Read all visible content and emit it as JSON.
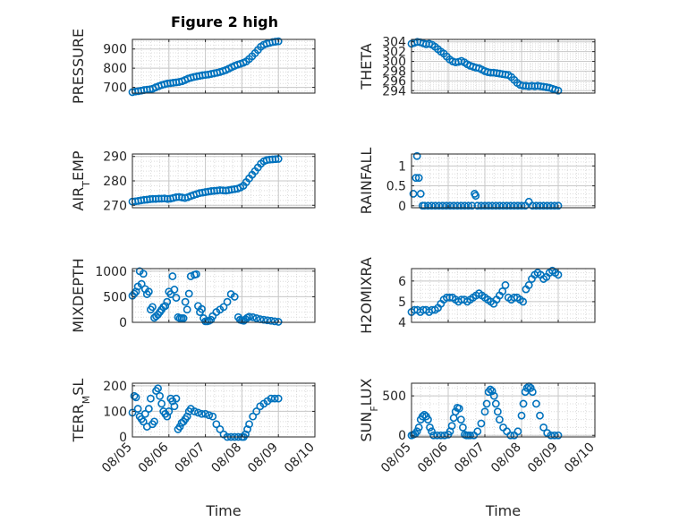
{
  "figure": {
    "title": "Figure 2 high",
    "marker_color": "#0072bd"
  },
  "chart_data": [
    {
      "type": "scatter",
      "ylabel": "PRESSURE",
      "xlabel": "",
      "title": "Figure 2 high",
      "xlim": [
        "08/05",
        "08/10"
      ],
      "ylim": [
        670,
        950
      ],
      "yticks": [
        700,
        800,
        900
      ],
      "xtick_labels": [],
      "grid": true,
      "series": [
        {
          "x": [
            0.0,
            0.08,
            0.16,
            0.24,
            0.32,
            0.4,
            0.48,
            0.56,
            0.64,
            0.72,
            0.8,
            0.88,
            0.96,
            1.04,
            1.12,
            1.2,
            1.28,
            1.36,
            1.44,
            1.52,
            1.6,
            1.68,
            1.76,
            1.84,
            1.92,
            2.0,
            2.08,
            2.16,
            2.24,
            2.32,
            2.4,
            2.48,
            2.56,
            2.64,
            2.72,
            2.8,
            2.88,
            2.96,
            3.04,
            3.12,
            3.2,
            3.28,
            3.36,
            3.44,
            3.52,
            3.6,
            3.68,
            3.76,
            3.84,
            3.92,
            4.0
          ],
          "values": [
            675,
            678,
            680,
            683,
            686,
            688,
            690,
            693,
            700,
            706,
            712,
            716,
            720,
            722,
            724,
            726,
            728,
            732,
            738,
            745,
            750,
            754,
            757,
            760,
            763,
            765,
            767,
            770,
            773,
            776,
            780,
            785,
            790,
            797,
            805,
            812,
            818,
            823,
            828,
            835,
            848,
            862,
            878,
            895,
            912,
            922,
            928,
            932,
            936,
            938,
            940
          ]
        }
      ]
    },
    {
      "type": "scatter",
      "ylabel": "THETA",
      "xlabel": "",
      "xlim": [
        "08/05",
        "08/10"
      ],
      "ylim": [
        293.5,
        304.5
      ],
      "yticks": [
        294,
        296,
        298,
        300,
        302,
        304
      ],
      "xtick_labels": [],
      "grid": true,
      "series": [
        {
          "x": [
            0.0,
            0.08,
            0.16,
            0.24,
            0.32,
            0.4,
            0.48,
            0.56,
            0.64,
            0.72,
            0.8,
            0.88,
            0.96,
            1.04,
            1.12,
            1.2,
            1.28,
            1.36,
            1.44,
            1.52,
            1.6,
            1.68,
            1.76,
            1.84,
            1.92,
            2.0,
            2.08,
            2.16,
            2.24,
            2.32,
            2.4,
            2.48,
            2.56,
            2.64,
            2.72,
            2.8,
            2.88,
            2.96,
            3.04,
            3.12,
            3.2,
            3.28,
            3.36,
            3.44,
            3.52,
            3.6,
            3.68,
            3.76,
            3.84,
            3.92,
            4.0
          ],
          "values": [
            303.6,
            303.8,
            304.0,
            303.9,
            303.7,
            303.5,
            303.6,
            303.4,
            303.0,
            302.5,
            302.0,
            301.6,
            301.0,
            300.4,
            300.0,
            299.8,
            299.9,
            300.1,
            299.8,
            299.4,
            299.1,
            298.9,
            298.7,
            298.6,
            298.3,
            298.0,
            297.8,
            297.7,
            297.7,
            297.6,
            297.5,
            297.4,
            297.3,
            297.2,
            296.8,
            296.2,
            295.6,
            295.2,
            295.0,
            295.0,
            294.9,
            295.0,
            294.9,
            295.0,
            294.9,
            294.8,
            294.7,
            294.6,
            294.4,
            294.2,
            294.0
          ]
        }
      ]
    },
    {
      "type": "scatter",
      "ylabel": "AIR_TEMP",
      "xlabel": "",
      "xlim": [
        "08/05",
        "08/10"
      ],
      "ylim": [
        269,
        291
      ],
      "yticks": [
        270,
        280,
        290
      ],
      "xtick_labels": [],
      "grid": true,
      "series": [
        {
          "x": [
            0.0,
            0.08,
            0.16,
            0.24,
            0.32,
            0.4,
            0.48,
            0.56,
            0.64,
            0.72,
            0.8,
            0.88,
            0.96,
            1.04,
            1.12,
            1.2,
            1.28,
            1.36,
            1.44,
            1.52,
            1.6,
            1.68,
            1.76,
            1.84,
            1.92,
            2.0,
            2.08,
            2.16,
            2.24,
            2.32,
            2.4,
            2.48,
            2.56,
            2.64,
            2.72,
            2.8,
            2.88,
            2.96,
            3.04,
            3.12,
            3.2,
            3.28,
            3.36,
            3.44,
            3.52,
            3.6,
            3.68,
            3.76,
            3.84,
            3.92,
            4.0
          ],
          "values": [
            271.5,
            271.6,
            271.8,
            272.0,
            272.2,
            272.3,
            272.5,
            272.6,
            272.6,
            272.7,
            272.7,
            272.8,
            272.6,
            272.7,
            273.0,
            273.3,
            273.4,
            273.2,
            273.0,
            273.3,
            273.8,
            274.2,
            274.6,
            275.0,
            275.2,
            275.4,
            275.6,
            275.8,
            275.9,
            276.0,
            276.2,
            276.1,
            276.0,
            276.2,
            276.4,
            276.6,
            276.8,
            277.3,
            278.0,
            279.5,
            281.0,
            282.5,
            284.0,
            285.5,
            287.0,
            288.0,
            288.5,
            288.7,
            288.8,
            288.9,
            289.0
          ]
        }
      ]
    },
    {
      "type": "scatter",
      "ylabel": "RAINFALL",
      "xlabel": "",
      "xlim": [
        "08/05",
        "08/10"
      ],
      "ylim": [
        -0.05,
        1.3
      ],
      "yticks": [
        0,
        0.5,
        1
      ],
      "ytick_labels": [
        "0",
        "0.5",
        "1"
      ],
      "xtick_labels": [],
      "grid": true,
      "series": [
        {
          "x": [
            0.05,
            0.12,
            0.15,
            0.2,
            0.25,
            0.3,
            0.35,
            0.45,
            0.55,
            0.65,
            0.75,
            0.85,
            0.95,
            1.05,
            1.15,
            1.25,
            1.35,
            1.45,
            1.55,
            1.65,
            1.72,
            1.75,
            1.8,
            1.9,
            2.0,
            2.1,
            2.2,
            2.3,
            2.4,
            2.5,
            2.6,
            2.7,
            2.8,
            2.9,
            3.0,
            3.1,
            3.2,
            3.3,
            3.4,
            3.5,
            3.6,
            3.7,
            3.8,
            3.9,
            4.0
          ],
          "values": [
            0.3,
            0.7,
            1.25,
            0.7,
            0.3,
            0.0,
            0.0,
            0.0,
            0.0,
            0.0,
            0.0,
            0.0,
            0.0,
            0.0,
            0.0,
            0.0,
            0.0,
            0.0,
            0.0,
            0.0,
            0.3,
            0.25,
            0.0,
            0.0,
            0.0,
            0.0,
            0.0,
            0.0,
            0.0,
            0.0,
            0.0,
            0.0,
            0.0,
            0.0,
            0.0,
            0.0,
            0.1,
            0.0,
            0.0,
            0.0,
            0.0,
            0.0,
            0.0,
            0.0,
            0.0
          ]
        }
      ]
    },
    {
      "type": "scatter",
      "ylabel": "MIXDEPTH",
      "xlabel": "",
      "xlim": [
        "08/05",
        "08/10"
      ],
      "ylim": [
        0,
        1050
      ],
      "yticks": [
        0,
        500,
        1000
      ],
      "xtick_labels": [],
      "grid": true,
      "series": [
        {
          "x": [
            0.0,
            0.05,
            0.1,
            0.15,
            0.2,
            0.25,
            0.3,
            0.35,
            0.4,
            0.45,
            0.5,
            0.55,
            0.6,
            0.65,
            0.7,
            0.75,
            0.8,
            0.85,
            0.9,
            0.95,
            1.0,
            1.05,
            1.1,
            1.15,
            1.2,
            1.25,
            1.3,
            1.35,
            1.4,
            1.45,
            1.5,
            1.55,
            1.6,
            1.7,
            1.75,
            1.8,
            1.85,
            1.9,
            1.95,
            2.0,
            2.05,
            2.1,
            2.15,
            2.2,
            2.3,
            2.4,
            2.5,
            2.6,
            2.7,
            2.8,
            2.9,
            2.95,
            3.0,
            3.05,
            3.1,
            3.15,
            3.2,
            3.3,
            3.4,
            3.5,
            3.6,
            3.7,
            3.8,
            3.9,
            4.0
          ],
          "values": [
            520,
            560,
            600,
            700,
            1000,
            750,
            950,
            650,
            550,
            600,
            250,
            300,
            90,
            120,
            150,
            200,
            250,
            300,
            320,
            400,
            600,
            550,
            900,
            640,
            480,
            100,
            80,
            80,
            80,
            400,
            250,
            560,
            900,
            930,
            940,
            320,
            200,
            260,
            80,
            20,
            20,
            30,
            50,
            120,
            200,
            250,
            300,
            400,
            550,
            500,
            100,
            50,
            40,
            30,
            60,
            90,
            110,
            100,
            80,
            60,
            50,
            40,
            30,
            20,
            10
          ]
        }
      ]
    },
    {
      "type": "scatter",
      "ylabel": "H2OMIXRA",
      "xlabel": "",
      "xlim": [
        "08/05",
        "08/10"
      ],
      "ylim": [
        4,
        6.6
      ],
      "yticks": [
        4,
        5,
        6
      ],
      "xtick_labels": [],
      "grid": true,
      "series": [
        {
          "x": [
            0.0,
            0.08,
            0.16,
            0.24,
            0.32,
            0.4,
            0.48,
            0.56,
            0.64,
            0.72,
            0.8,
            0.88,
            0.96,
            1.04,
            1.12,
            1.2,
            1.28,
            1.36,
            1.44,
            1.52,
            1.6,
            1.68,
            1.76,
            1.84,
            1.92,
            2.0,
            2.08,
            2.16,
            2.24,
            2.32,
            2.4,
            2.48,
            2.56,
            2.64,
            2.72,
            2.8,
            2.88,
            2.96,
            3.04,
            3.12,
            3.2,
            3.28,
            3.36,
            3.44,
            3.52,
            3.6,
            3.68,
            3.76,
            3.84,
            3.92,
            4.0
          ],
          "values": [
            4.5,
            4.6,
            4.6,
            4.5,
            4.6,
            4.6,
            4.5,
            4.6,
            4.6,
            4.7,
            4.9,
            5.1,
            5.2,
            5.2,
            5.2,
            5.1,
            5.0,
            5.1,
            5.1,
            5.0,
            5.1,
            5.2,
            5.3,
            5.4,
            5.3,
            5.2,
            5.1,
            5.0,
            4.9,
            5.1,
            5.3,
            5.5,
            5.8,
            5.2,
            5.1,
            5.2,
            5.2,
            5.1,
            5.0,
            5.6,
            5.8,
            6.1,
            6.3,
            6.4,
            6.3,
            6.1,
            6.2,
            6.4,
            6.5,
            6.4,
            6.3
          ]
        }
      ]
    },
    {
      "type": "scatter",
      "ylabel": "TERR_MSL",
      "xlabel": "Time",
      "xlim": [
        "08/05",
        "08/10"
      ],
      "ylim": [
        0,
        210
      ],
      "yticks": [
        0,
        100,
        200
      ],
      "xtick_labels": [
        "08/05",
        "08/06",
        "08/07",
        "08/08",
        "08/09",
        "08/10"
      ],
      "grid": true,
      "series": [
        {
          "x": [
            0.0,
            0.05,
            0.1,
            0.15,
            0.2,
            0.25,
            0.3,
            0.35,
            0.4,
            0.45,
            0.5,
            0.55,
            0.6,
            0.65,
            0.7,
            0.75,
            0.8,
            0.85,
            0.9,
            0.95,
            1.0,
            1.05,
            1.1,
            1.15,
            1.2,
            1.25,
            1.3,
            1.35,
            1.4,
            1.45,
            1.5,
            1.55,
            1.6,
            1.7,
            1.8,
            1.9,
            2.0,
            2.1,
            2.2,
            2.3,
            2.4,
            2.5,
            2.6,
            2.7,
            2.8,
            2.9,
            3.0,
            3.05,
            3.1,
            3.15,
            3.2,
            3.3,
            3.4,
            3.5,
            3.6,
            3.7,
            3.8,
            3.9,
            4.0
          ],
          "values": [
            95,
            160,
            155,
            110,
            80,
            70,
            60,
            90,
            40,
            110,
            150,
            50,
            60,
            180,
            190,
            160,
            130,
            100,
            90,
            80,
            100,
            150,
            140,
            120,
            150,
            30,
            40,
            55,
            60,
            70,
            80,
            100,
            110,
            100,
            95,
            90,
            90,
            85,
            80,
            50,
            30,
            10,
            0,
            0,
            0,
            0,
            0,
            0,
            10,
            30,
            50,
            80,
            100,
            120,
            130,
            140,
            150,
            150,
            150
          ]
        }
      ]
    },
    {
      "type": "scatter",
      "ylabel": "SUN_FLUX",
      "xlabel": "Time",
      "xlim": [
        "08/05",
        "08/10"
      ],
      "ylim": [
        -20,
        660
      ],
      "yticks": [
        0,
        500
      ],
      "xtick_labels": [
        "08/05",
        "08/06",
        "08/07",
        "08/08",
        "08/09",
        "08/10"
      ],
      "grid": true,
      "series": [
        {
          "x": [
            0.0,
            0.05,
            0.1,
            0.15,
            0.2,
            0.25,
            0.3,
            0.35,
            0.4,
            0.45,
            0.5,
            0.55,
            0.6,
            0.7,
            0.8,
            0.9,
            1.0,
            1.05,
            1.1,
            1.15,
            1.2,
            1.25,
            1.3,
            1.35,
            1.4,
            1.45,
            1.5,
            1.55,
            1.6,
            1.7,
            1.8,
            1.9,
            2.0,
            2.05,
            2.1,
            2.15,
            2.2,
            2.25,
            2.3,
            2.35,
            2.4,
            2.5,
            2.6,
            2.7,
            2.8,
            2.9,
            3.0,
            3.05,
            3.1,
            3.15,
            3.2,
            3.25,
            3.3,
            3.4,
            3.5,
            3.6,
            3.7,
            3.8,
            3.9,
            4.0
          ],
          "values": [
            0,
            10,
            20,
            50,
            100,
            200,
            240,
            260,
            240,
            200,
            100,
            50,
            0,
            0,
            0,
            0,
            10,
            50,
            120,
            220,
            300,
            350,
            340,
            200,
            100,
            10,
            0,
            0,
            0,
            0,
            50,
            150,
            300,
            400,
            550,
            580,
            560,
            500,
            400,
            300,
            200,
            100,
            50,
            0,
            0,
            50,
            250,
            400,
            550,
            600,
            620,
            600,
            550,
            400,
            250,
            100,
            30,
            0,
            0,
            0
          ]
        }
      ]
    }
  ]
}
